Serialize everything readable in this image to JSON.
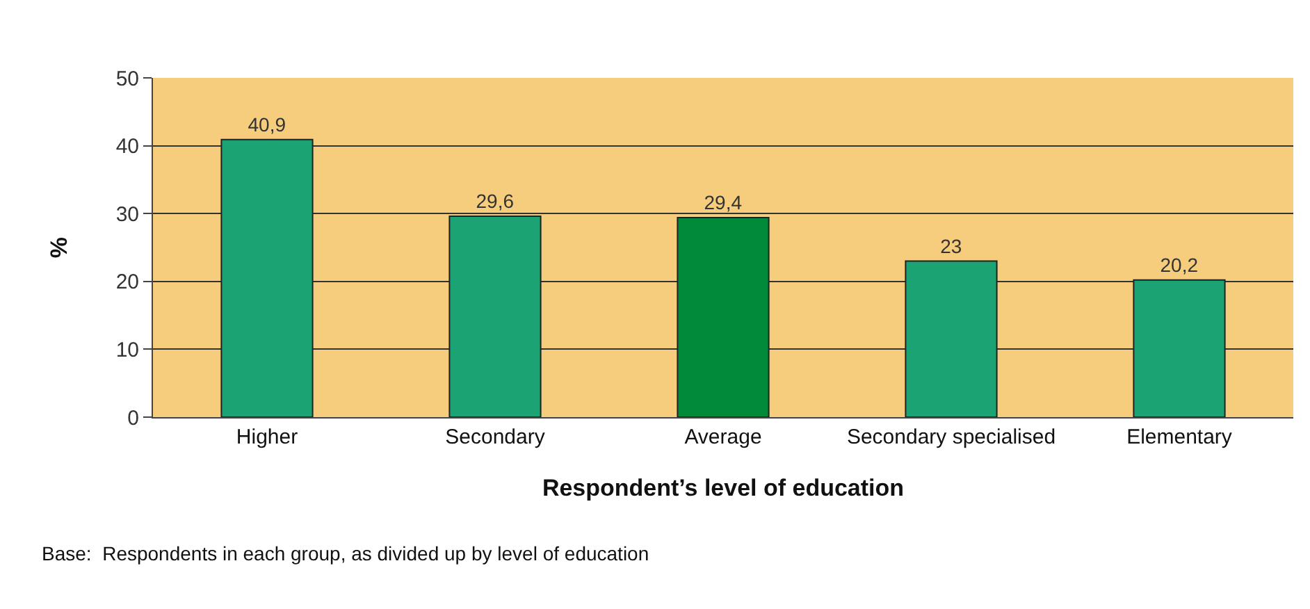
{
  "chart_data": {
    "type": "bar",
    "categories": [
      "Higher",
      "Secondary",
      "Average",
      "Secondary specialised",
      "Elementary"
    ],
    "values": [
      40.9,
      29.6,
      29.4,
      23,
      20.2
    ],
    "value_labels": [
      "40,9",
      "29,6",
      "29,4",
      "23",
      "20,2"
    ],
    "colors": [
      "#1ba373",
      "#1ba373",
      "#008a3a",
      "#1ba373",
      "#1ba373"
    ],
    "xlabel": "Respondent’s level of education",
    "ylabel": "%",
    "ylim": [
      0,
      50
    ],
    "yticks": [
      0,
      10,
      20,
      30,
      40,
      50
    ],
    "grid": "y",
    "annotations": [
      "Base:  Respondents in each group, as divided up by level of education"
    ]
  }
}
